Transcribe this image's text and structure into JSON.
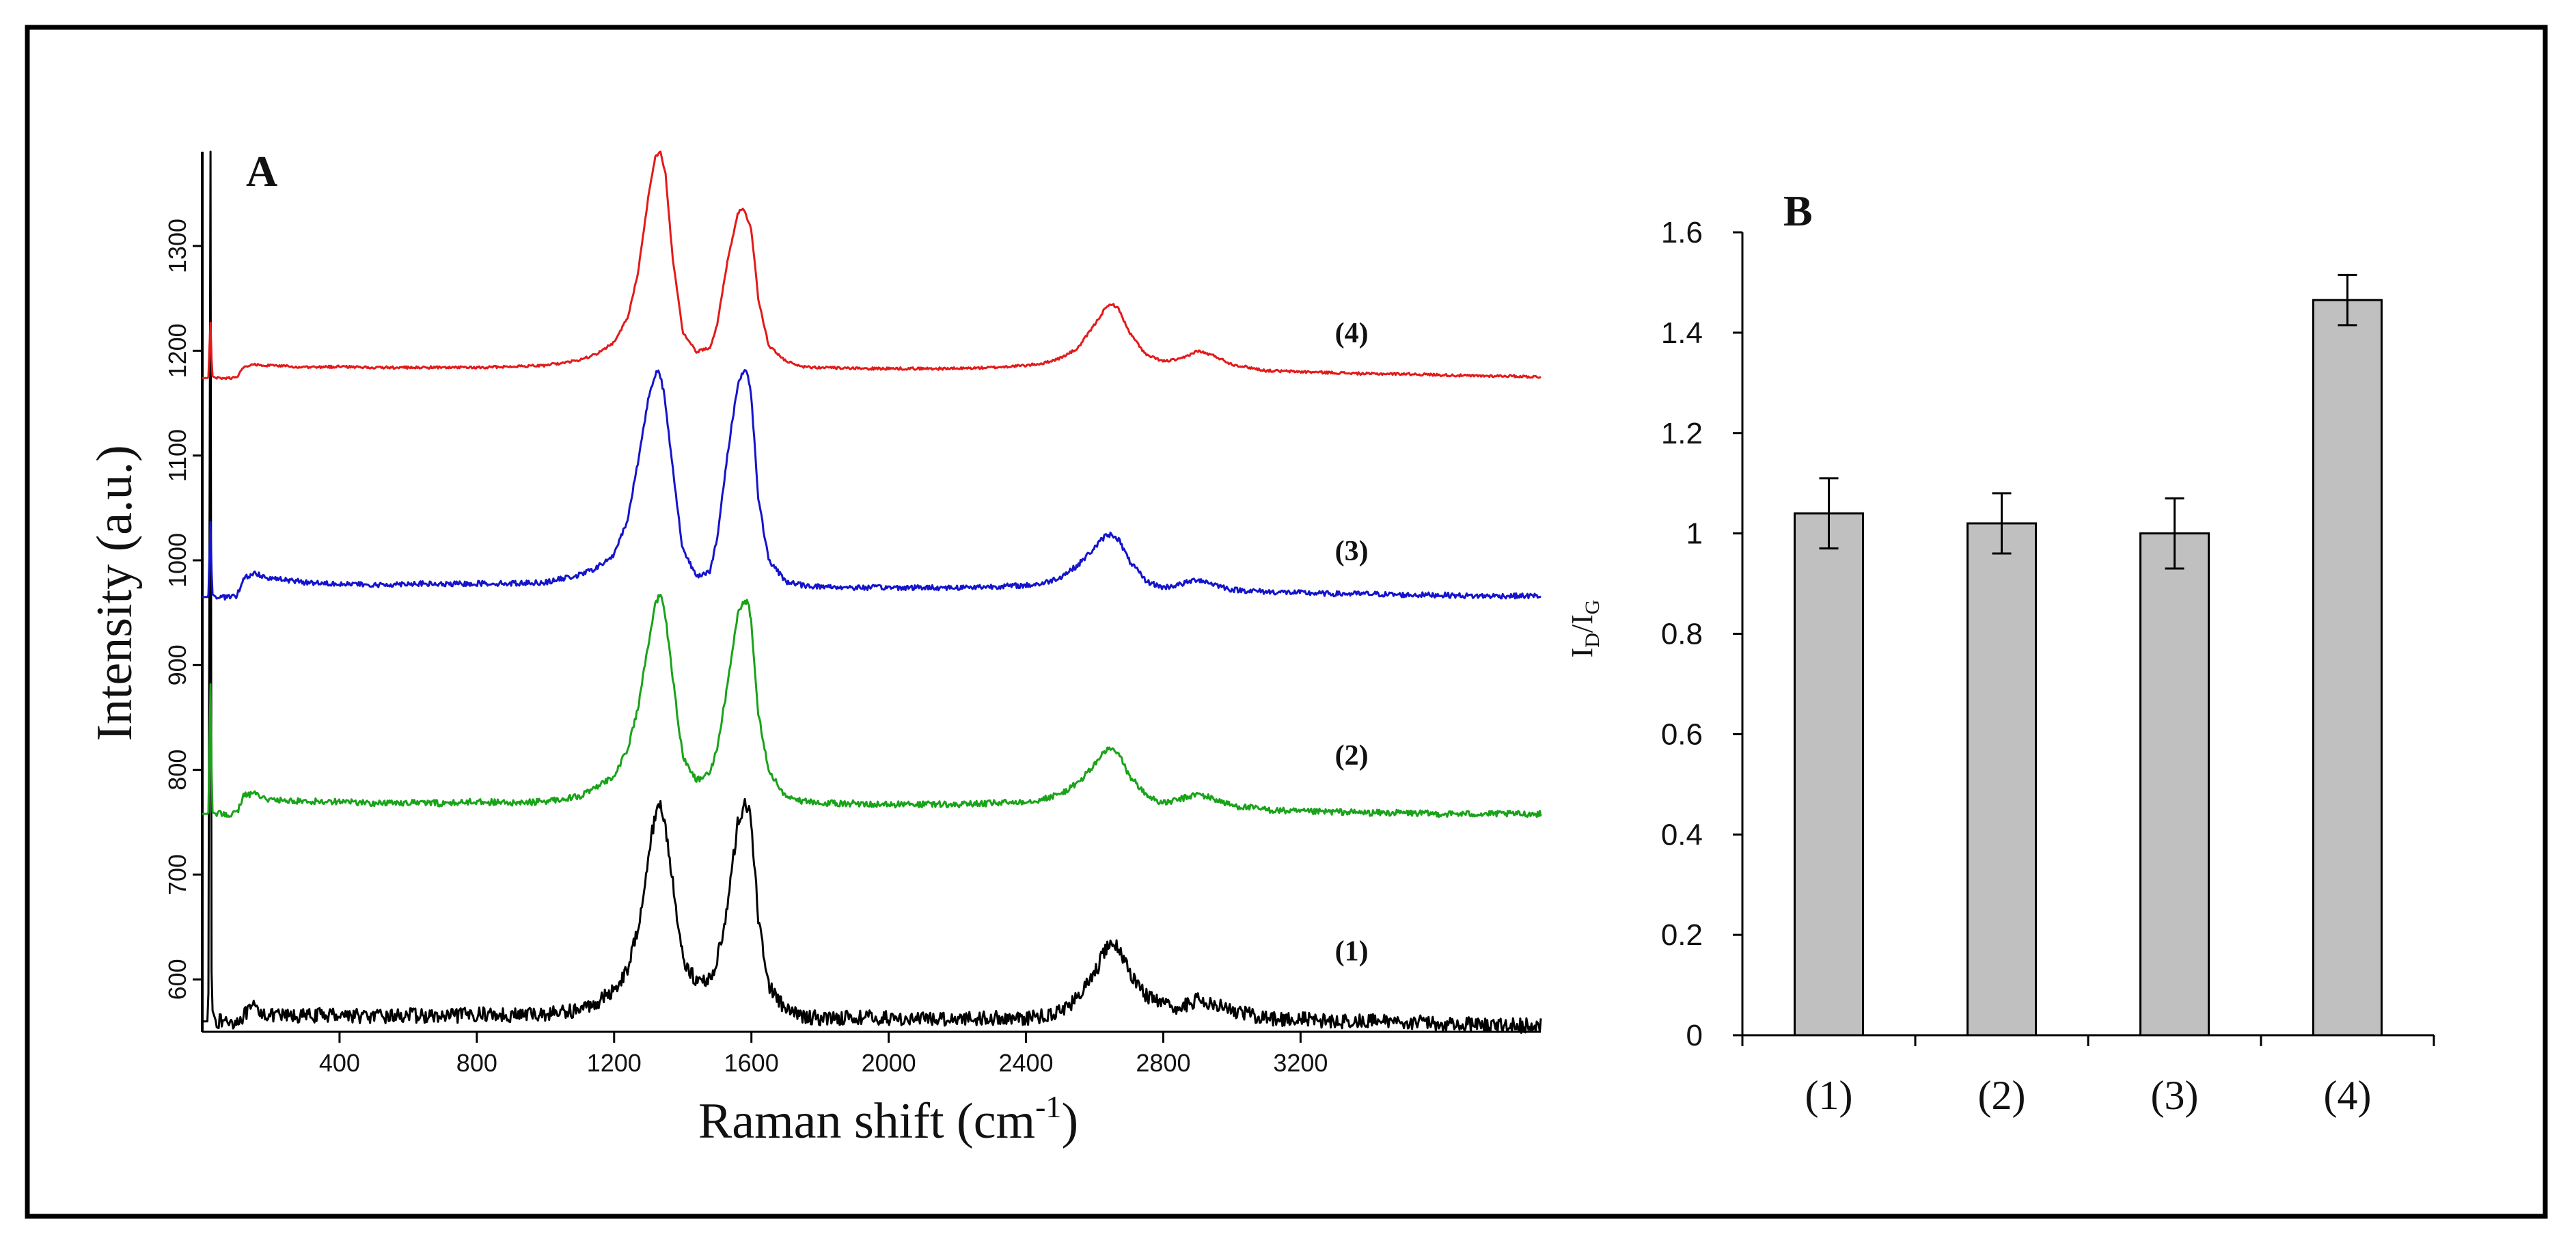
{
  "chart_data": [
    {
      "type": "line",
      "panel_label": "A",
      "title": "",
      "xlabel": "Raman shift (cm-1)",
      "xlabel_main": "Raman shift (cm",
      "xlabel_sup": "-1",
      "xlabel_end": ")",
      "ylabel": "Intensity (a.u.)",
      "xlim": [
        0,
        3900
      ],
      "ylim": [
        550,
        1390
      ],
      "x_ticks": [
        "400",
        "800",
        "1200",
        "1600",
        "2000",
        "2400",
        "2800",
        "3200"
      ],
      "y_ticks": [
        "600",
        "700",
        "800",
        "900",
        "1000",
        "1100",
        "1200",
        "1300"
      ],
      "grid": false,
      "legend": "none",
      "series": [
        {
          "name": "(1)",
          "color": "#000000",
          "label_pos": [
            3300,
            618
          ],
          "noise": 7,
          "x": [
            0,
            10,
            15,
            20,
            22,
            24,
            26,
            30,
            40,
            60,
            80,
            100,
            150,
            200,
            300,
            400,
            500,
            600,
            700,
            800,
            900,
            1000,
            1100,
            1150,
            1200,
            1240,
            1270,
            1300,
            1320,
            1335,
            1350,
            1370,
            1400,
            1440,
            1480,
            1500,
            1530,
            1560,
            1580,
            1590,
            1600,
            1620,
            1650,
            1700,
            1750,
            1800,
            1900,
            2000,
            2100,
            2200,
            2300,
            2400,
            2450,
            2500,
            2550,
            2600,
            2630,
            2650,
            2670,
            2700,
            2750,
            2800,
            2850,
            2900,
            2950,
            3000,
            3100,
            3200,
            3300,
            3400,
            3500,
            3600,
            3700,
            3800,
            3900
          ],
          "y": [
            560,
            560,
            560,
            605,
            1390,
            1390,
            620,
            570,
            560,
            560,
            560,
            560,
            573,
            565,
            565,
            567,
            564,
            566,
            564,
            567,
            566,
            567,
            571,
            578,
            590,
            610,
            650,
            718,
            758,
            768,
            745,
            695,
            620,
            597,
            601,
            617,
            670,
            748,
            768,
            766,
            745,
            660,
            595,
            570,
            565,
            563,
            564,
            563,
            562,
            563,
            563,
            563,
            565,
            570,
            582,
            605,
            628,
            635,
            630,
            608,
            585,
            575,
            573,
            580,
            578,
            570,
            563,
            562,
            560,
            560,
            560,
            558,
            557,
            556,
            556
          ]
        },
        {
          "name": "(2)",
          "color": "#19a319",
          "label_pos": [
            3300,
            805
          ],
          "noise": 3,
          "x": [
            0,
            10,
            15,
            20,
            22,
            25,
            28,
            40,
            60,
            80,
            100,
            120,
            150,
            200,
            300,
            400,
            500,
            600,
            700,
            800,
            900,
            1000,
            1100,
            1150,
            1200,
            1240,
            1270,
            1300,
            1320,
            1335,
            1350,
            1370,
            1400,
            1440,
            1480,
            1500,
            1530,
            1560,
            1580,
            1590,
            1600,
            1620,
            1650,
            1700,
            1750,
            1800,
            1900,
            2000,
            2100,
            2200,
            2300,
            2400,
            2450,
            2500,
            2550,
            2600,
            2630,
            2650,
            2670,
            2700,
            2750,
            2800,
            2850,
            2900,
            2950,
            3000,
            3100,
            3200,
            3300,
            3400,
            3500,
            3600,
            3700,
            3800,
            3900
          ],
          "y": [
            758,
            758,
            758,
            760,
            885,
            880,
            760,
            758,
            758,
            758,
            758,
            775,
            778,
            771,
            770,
            770,
            768,
            769,
            768,
            770,
            768,
            770,
            775,
            783,
            795,
            820,
            860,
            920,
            958,
            968,
            945,
            890,
            812,
            790,
            797,
            820,
            880,
            948,
            962,
            960,
            940,
            855,
            798,
            775,
            770,
            768,
            768,
            767,
            767,
            767,
            768,
            770,
            772,
            777,
            787,
            805,
            818,
            820,
            815,
            795,
            776,
            768,
            772,
            777,
            772,
            766,
            762,
            760,
            760,
            759,
            759,
            758,
            758,
            758,
            758
          ]
        },
        {
          "name": "(3)",
          "color": "#1414cc",
          "label_pos": [
            3300,
            1000
          ],
          "noise": 2.5,
          "x": [
            0,
            10,
            15,
            20,
            22,
            25,
            28,
            40,
            60,
            80,
            100,
            120,
            150,
            200,
            300,
            400,
            500,
            600,
            700,
            800,
            900,
            1000,
            1100,
            1150,
            1200,
            1240,
            1270,
            1300,
            1320,
            1330,
            1345,
            1370,
            1400,
            1440,
            1480,
            1500,
            1530,
            1560,
            1580,
            1590,
            1600,
            1620,
            1650,
            1700,
            1750,
            1800,
            1900,
            2000,
            2100,
            2200,
            2300,
            2400,
            2450,
            2500,
            2550,
            2600,
            2630,
            2650,
            2670,
            2700,
            2750,
            2800,
            2850,
            2900,
            2950,
            3000,
            3100,
            3200,
            3300,
            3400,
            3500,
            3600,
            3700,
            3800,
            3900
          ],
          "y": [
            965,
            965,
            965,
            968,
            1040,
            1035,
            968,
            965,
            965,
            965,
            965,
            982,
            988,
            983,
            979,
            978,
            976,
            978,
            977,
            978,
            978,
            979,
            986,
            993,
            1005,
            1040,
            1095,
            1155,
            1178,
            1183,
            1160,
            1090,
            1010,
            985,
            990,
            1020,
            1100,
            1168,
            1182,
            1178,
            1155,
            1060,
            1000,
            980,
            976,
            975,
            974,
            974,
            974,
            974,
            975,
            976,
            978,
            984,
            995,
            1012,
            1023,
            1025,
            1020,
            1000,
            980,
            974,
            977,
            982,
            977,
            972,
            970,
            969,
            968,
            968,
            967,
            967,
            966,
            966,
            966
          ]
        },
        {
          "name": "(4)",
          "color": "#e31a1a",
          "label_pos": [
            3300,
            1208
          ],
          "noise": 1.2,
          "x": [
            0,
            10,
            15,
            20,
            22,
            25,
            28,
            40,
            60,
            80,
            100,
            120,
            150,
            200,
            300,
            400,
            500,
            600,
            700,
            800,
            900,
            1000,
            1100,
            1150,
            1200,
            1240,
            1270,
            1300,
            1320,
            1335,
            1350,
            1370,
            1400,
            1440,
            1480,
            1500,
            1530,
            1560,
            1570,
            1580,
            1600,
            1620,
            1650,
            1700,
            1750,
            1800,
            1900,
            2000,
            2100,
            2200,
            2300,
            2400,
            2450,
            2500,
            2550,
            2600,
            2630,
            2650,
            2670,
            2700,
            2750,
            2800,
            2850,
            2900,
            2950,
            3000,
            3100,
            3200,
            3300,
            3400,
            3500,
            3600,
            3700,
            3800,
            3900
          ],
          "y": [
            1174,
            1174,
            1174,
            1176,
            1230,
            1225,
            1176,
            1174,
            1174,
            1174,
            1174,
            1184,
            1187,
            1186,
            1184,
            1185,
            1184,
            1184,
            1184,
            1184,
            1185,
            1186,
            1191,
            1197,
            1208,
            1232,
            1275,
            1348,
            1385,
            1390,
            1368,
            1290,
            1218,
            1199,
            1203,
            1225,
            1285,
            1330,
            1336,
            1334,
            1315,
            1250,
            1205,
            1190,
            1185,
            1184,
            1183,
            1183,
            1183,
            1183,
            1184,
            1186,
            1188,
            1193,
            1202,
            1225,
            1240,
            1245,
            1240,
            1218,
            1196,
            1190,
            1192,
            1200,
            1195,
            1187,
            1181,
            1180,
            1179,
            1178,
            1178,
            1177,
            1176,
            1176,
            1175
          ]
        }
      ]
    },
    {
      "type": "bar",
      "panel_label": "B",
      "title": "",
      "xlabel": "",
      "ylabel": "ID/IG",
      "ylabel_parts": [
        "I",
        "D",
        "/I",
        "G"
      ],
      "ylim": [
        0,
        1.6
      ],
      "y_ticks": [
        "0",
        "0.2",
        "0.4",
        "0.6",
        "0.8",
        "1",
        "1.2",
        "1.4",
        "1.6"
      ],
      "grid": false,
      "legend": "none",
      "bar_color": "#c0c0c0",
      "categories": [
        "(1)",
        "(2)",
        "(3)",
        "(4)"
      ],
      "values": [
        1.04,
        1.02,
        1.0,
        1.465
      ],
      "errors": [
        0.07,
        0.06,
        0.07,
        0.05
      ]
    }
  ]
}
